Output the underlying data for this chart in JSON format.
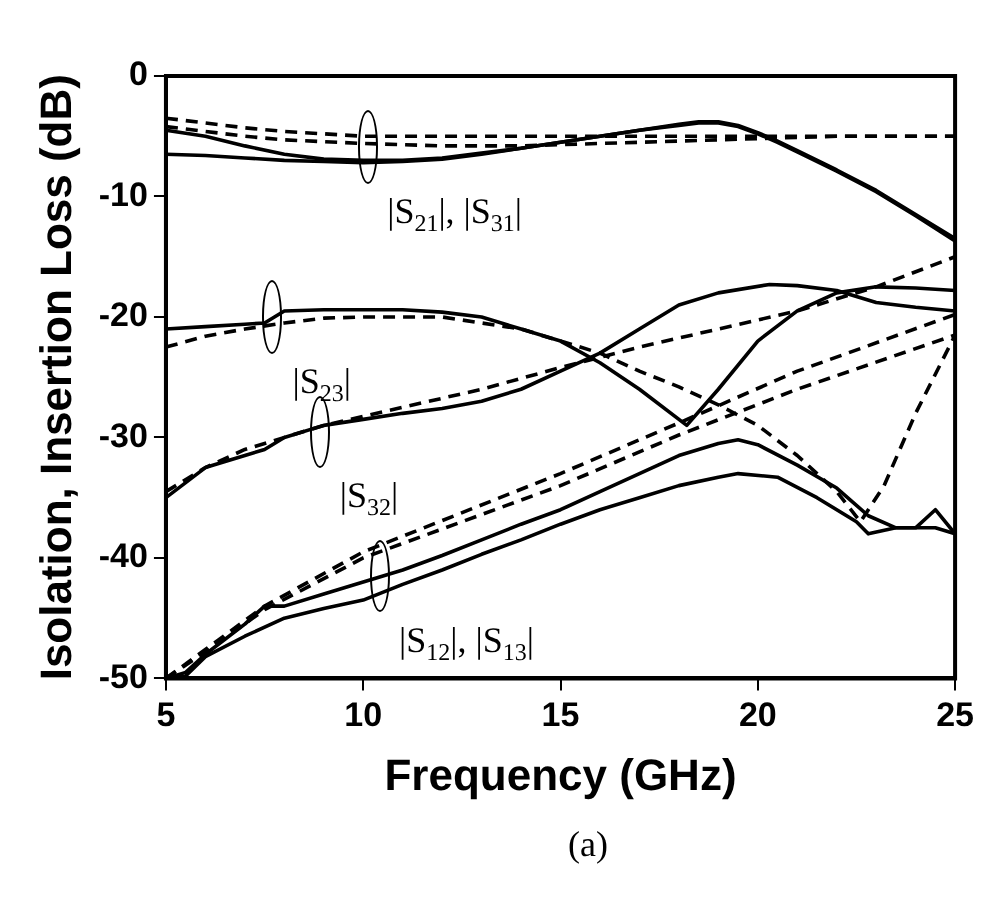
{
  "chart_data": {
    "type": "line",
    "xlabel": "Frequency (GHz)",
    "ylabel": "Isolation, Insertion Loss (dB)",
    "xlim": [
      5,
      25
    ],
    "xticks": [
      5,
      10,
      15,
      20,
      25
    ],
    "ylim": [
      -50,
      0
    ],
    "yticks": [
      0,
      -10,
      -20,
      -30,
      -40,
      -50
    ],
    "grid": false,
    "marker": "none",
    "annotations": [
      {
        "text": "|S$_{21}$|, |S$_{31}$|",
        "x": 10.1,
        "y": -5.9
      },
      {
        "text": "|S$_{23}$|",
        "x": 7.7,
        "y": -20
      },
      {
        "text": "|S$_{32}$|",
        "x": 8.9,
        "y": -29.5
      },
      {
        "text": "|S$_{12}$|, |S$_{13}$|",
        "x": 10.4,
        "y": -41.5
      },
      "(a)"
    ],
    "series": [
      {
        "color": "#000000",
        "line_style": "solid",
        "x": [
          5,
          6,
          7,
          8,
          9,
          10,
          11,
          12,
          13,
          14,
          15,
          16,
          17,
          18,
          18.5,
          19,
          19.5,
          20,
          20.5,
          21,
          22,
          23,
          24,
          25
        ],
        "values": [
          -4.5,
          -5,
          -5.8,
          -6.5,
          -6.9,
          -7,
          -7,
          -6.8,
          -6.4,
          -6,
          -5.5,
          -5,
          -4.5,
          -4,
          -3.8,
          -3.8,
          -4.1,
          -4.7,
          -5.4,
          -6.2,
          -7.8,
          -9.5,
          -11.5,
          -13.5
        ]
      },
      {
        "color": "#000000",
        "line_style": "solid",
        "x": [
          5,
          6,
          7,
          8,
          9,
          10,
          11,
          12,
          13,
          14,
          15,
          16,
          17,
          18,
          18.5,
          19,
          19.5,
          20,
          20.5,
          21,
          22,
          23,
          24,
          25
        ],
        "values": [
          -6.5,
          -6.6,
          -6.8,
          -7,
          -7.1,
          -7.2,
          -7.1,
          -6.9,
          -6.5,
          -6,
          -5.5,
          -5,
          -4.5,
          -4.1,
          -3.9,
          -3.9,
          -4.2,
          -4.8,
          -5.5,
          -6.3,
          -7.9,
          -9.6,
          -11.6,
          -13.7
        ]
      },
      {
        "color": "#000000",
        "line_style": "dashed",
        "x": [
          5,
          6,
          7,
          8,
          9,
          10,
          12,
          14,
          16,
          18,
          20,
          22,
          25
        ],
        "values": [
          -3.5,
          -3.9,
          -4.3,
          -4.6,
          -4.8,
          -5,
          -5,
          -5,
          -5,
          -5,
          -5,
          -5,
          -5
        ]
      },
      {
        "color": "#000000",
        "line_style": "dashed",
        "x": [
          5,
          6,
          7,
          8,
          10,
          12,
          14,
          16,
          18,
          20,
          22,
          25
        ],
        "values": [
          -4.2,
          -4.6,
          -5,
          -5.3,
          -5.6,
          -5.8,
          -5.8,
          -5.6,
          -5.4,
          -5.2,
          -5,
          -5
        ]
      },
      {
        "color": "#000000",
        "line_style": "solid",
        "x": [
          5,
          6,
          7,
          7.5,
          8,
          9,
          10,
          11,
          12,
          13,
          14,
          15,
          16,
          17,
          18.2,
          19,
          20,
          21,
          22,
          23,
          24,
          25
        ],
        "values": [
          -21,
          -20.8,
          -20.6,
          -20.5,
          -19.5,
          -19.4,
          -19.4,
          -19.4,
          -19.6,
          -20,
          -21,
          -22,
          -23.8,
          -26,
          -29,
          -26,
          -22,
          -19.5,
          -18,
          -17.5,
          -17.6,
          -17.8
        ]
      },
      {
        "color": "#000000",
        "line_style": "dashed",
        "x": [
          5,
          6,
          7,
          8,
          9,
          10,
          12,
          14,
          15,
          16,
          17,
          18,
          19,
          20,
          21,
          22,
          22.6,
          23.2,
          24,
          25
        ],
        "values": [
          -22.5,
          -21.6,
          -21,
          -20.5,
          -20.1,
          -20,
          -20,
          -21,
          -22,
          -23,
          -24.5,
          -25.8,
          -27.3,
          -29,
          -31.5,
          -34.5,
          -37,
          -34,
          -28,
          -21.5
        ]
      },
      {
        "color": "#000000",
        "line_style": "solid",
        "x": [
          5,
          6,
          7,
          7.5,
          8,
          9,
          10,
          11,
          12,
          13,
          14,
          15,
          16,
          17,
          18,
          19,
          20.3,
          21,
          22,
          23,
          24,
          25
        ],
        "values": [
          -35,
          -32.5,
          -31.5,
          -31,
          -30,
          -29,
          -28.5,
          -28,
          -27.6,
          -27,
          -26,
          -24.5,
          -23,
          -21,
          -19,
          -18,
          -17.3,
          -17.4,
          -17.8,
          -18.8,
          -19.2,
          -19.5
        ]
      },
      {
        "color": "#000000",
        "line_style": "dashed",
        "x": [
          5,
          6,
          7,
          9,
          11,
          13,
          15,
          17,
          19,
          21,
          23,
          25
        ],
        "values": [
          -34.5,
          -32.5,
          -31,
          -29,
          -27.5,
          -26,
          -24.2,
          -22.5,
          -21,
          -19.5,
          -17.5,
          -15
        ]
      },
      {
        "color": "#000000",
        "line_style": "solid",
        "x": [
          5,
          5.5,
          6,
          7,
          7.5,
          8,
          9,
          10,
          11,
          12,
          13,
          14,
          15,
          16,
          17,
          18,
          19,
          19.5,
          20,
          21,
          22,
          22.8,
          23.5,
          24,
          24.5,
          25
        ],
        "values": [
          -50,
          -49.5,
          -48,
          -45.5,
          -44,
          -44,
          -43,
          -42,
          -41,
          -39.8,
          -38.5,
          -37.2,
          -36,
          -34.5,
          -33,
          -31.5,
          -30.5,
          -30.2,
          -30.6,
          -32.3,
          -34.2,
          -36.5,
          -37.5,
          -37.5,
          -36,
          -38
        ]
      },
      {
        "color": "#000000",
        "line_style": "solid",
        "x": [
          5,
          5.5,
          6,
          7,
          8,
          9,
          10,
          11,
          12,
          13,
          14,
          15,
          16,
          17,
          18,
          19,
          19.5,
          20.5,
          21.5,
          22.5,
          22.8,
          23.5,
          24.5,
          25
        ],
        "values": [
          -50,
          -49.8,
          -48.2,
          -46.5,
          -45,
          -44.2,
          -43.5,
          -42.2,
          -41,
          -39.7,
          -38.5,
          -37.2,
          -36,
          -35,
          -34,
          -33.3,
          -33,
          -33.3,
          -35,
          -37,
          -38,
          -37.5,
          -37.5,
          -38
        ]
      },
      {
        "color": "#000000",
        "line_style": "dashed",
        "x": [
          5,
          6,
          7.5,
          10,
          15,
          18,
          21,
          25
        ],
        "values": [
          -50,
          -47.6,
          -44,
          -39.5,
          -33,
          -28.8,
          -24.5,
          -19.8
        ]
      },
      {
        "color": "#000000",
        "line_style": "dashed",
        "x": [
          5,
          6,
          7.5,
          10,
          15,
          18,
          21,
          25
        ],
        "values": [
          -50,
          -47.8,
          -44.3,
          -40,
          -34,
          -29.8,
          -26,
          -21.5
        ]
      }
    ]
  }
}
